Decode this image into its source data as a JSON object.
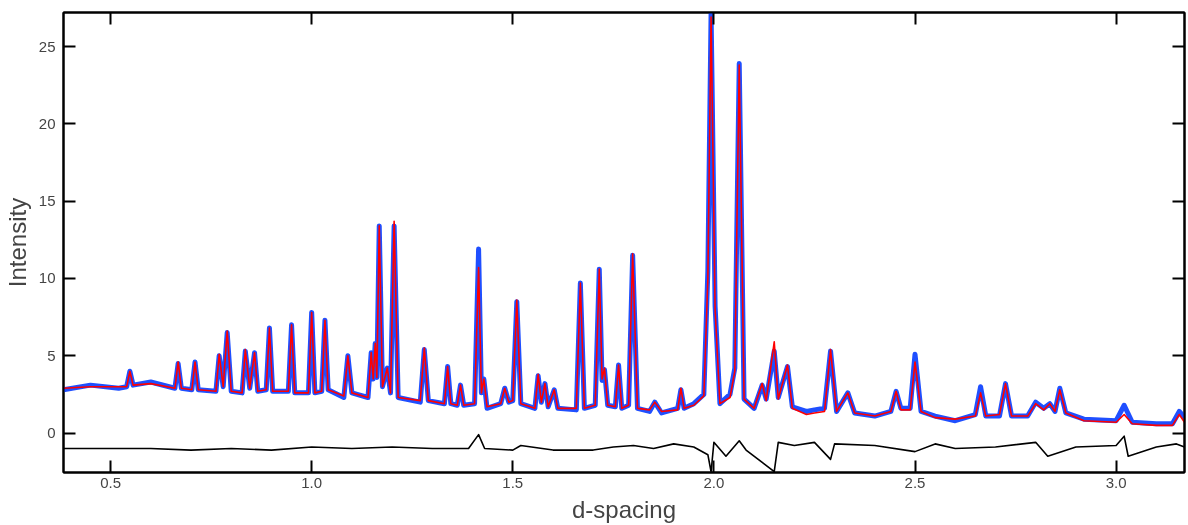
{
  "chart_data": {
    "type": "line",
    "xlabel": "d-spacing",
    "ylabel": "Intensity",
    "xlim": [
      0.383,
      3.17
    ],
    "ylim": [
      -2.55,
      27.2
    ],
    "xticks": [
      0.5,
      {
        "value": 1.0,
        "label": "1.0"
      },
      1.5,
      {
        "value": 2.0,
        "label": "2.0"
      },
      2.5,
      {
        "value": 3.0,
        "label": "3.0"
      }
    ],
    "yticks": [
      0,
      5,
      10,
      15,
      20,
      25
    ],
    "grid": false,
    "marker": "none",
    "line_style": "solid",
    "x": [
      0.383,
      0.45,
      0.52,
      0.54,
      0.548,
      0.556,
      0.6,
      0.66,
      0.668,
      0.676,
      0.702,
      0.71,
      0.718,
      0.762,
      0.77,
      0.78,
      0.79,
      0.8,
      0.827,
      0.835,
      0.846,
      0.858,
      0.866,
      0.887,
      0.895,
      0.903,
      0.942,
      0.95,
      0.958,
      0.992,
      1.0,
      1.008,
      1.025,
      1.033,
      1.041,
      1.08,
      1.09,
      1.1,
      1.14,
      1.148,
      1.153,
      1.158,
      1.162,
      1.168,
      1.176,
      1.188,
      1.196,
      1.205,
      1.215,
      1.27,
      1.28,
      1.29,
      1.33,
      1.338,
      1.346,
      1.362,
      1.37,
      1.378,
      1.405,
      1.415,
      1.422,
      1.428,
      1.436,
      1.47,
      1.48,
      1.49,
      1.5,
      1.51,
      1.52,
      1.555,
      1.563,
      1.571,
      1.58,
      1.588,
      1.603,
      1.612,
      1.658,
      1.668,
      1.678,
      1.705,
      1.715,
      1.722,
      1.728,
      1.736,
      1.755,
      1.763,
      1.771,
      1.788,
      1.798,
      1.81,
      1.84,
      1.853,
      1.87,
      1.91,
      1.918,
      1.926,
      1.95,
      1.975,
      1.985,
      1.993,
      2.003,
      2.015,
      2.04,
      2.052,
      2.063,
      2.075,
      2.1,
      2.12,
      2.13,
      2.15,
      2.16,
      2.183,
      2.195,
      2.23,
      2.25,
      2.275,
      2.29,
      2.305,
      2.333,
      2.35,
      2.4,
      2.44,
      2.453,
      2.465,
      2.488,
      2.5,
      2.515,
      2.55,
      2.6,
      2.65,
      2.663,
      2.676,
      2.71,
      2.725,
      2.74,
      2.78,
      2.8,
      2.82,
      2.835,
      2.848,
      2.86,
      2.875,
      2.92,
      3.0,
      3.02,
      3.04,
      3.1,
      3.14,
      3.157,
      3.17
    ],
    "series": [
      {
        "color": "#1f4fff",
        "values": [
          2.8,
          3.1,
          2.9,
          3.0,
          4.0,
          3.1,
          3.3,
          2.9,
          4.5,
          2.9,
          2.8,
          4.6,
          2.8,
          2.7,
          5.0,
          3.0,
          6.5,
          2.7,
          2.6,
          5.3,
          2.9,
          5.2,
          2.7,
          2.8,
          6.8,
          2.7,
          2.7,
          7.0,
          2.6,
          2.6,
          7.8,
          2.6,
          2.7,
          7.3,
          2.8,
          2.3,
          5.0,
          2.6,
          2.3,
          5.2,
          3.5,
          5.8,
          3.6,
          13.4,
          3.0,
          4.2,
          2.6,
          13.4,
          2.3,
          2.0,
          5.4,
          2.1,
          1.9,
          4.3,
          1.9,
          1.8,
          3.1,
          1.8,
          1.9,
          11.9,
          2.6,
          3.5,
          1.6,
          1.9,
          2.9,
          2.0,
          2.1,
          8.5,
          1.9,
          1.6,
          3.7,
          2.0,
          3.2,
          1.7,
          2.8,
          1.6,
          1.5,
          9.7,
          1.6,
          1.8,
          10.6,
          3.4,
          4.1,
          1.8,
          1.7,
          4.4,
          1.6,
          1.8,
          11.5,
          1.6,
          1.4,
          2.0,
          1.3,
          1.6,
          2.8,
          1.6,
          1.9,
          2.5,
          10.5,
          27.2,
          8.2,
          1.9,
          2.5,
          4.2,
          23.9,
          2.2,
          1.6,
          3.1,
          2.2,
          5.3,
          2.3,
          4.3,
          1.7,
          1.4,
          1.5,
          1.6,
          5.3,
          1.4,
          2.6,
          1.3,
          1.1,
          1.4,
          2.7,
          1.6,
          1.6,
          5.1,
          1.4,
          1.1,
          0.8,
          1.2,
          3.0,
          1.1,
          1.1,
          3.2,
          1.1,
          1.1,
          2.0,
          1.6,
          1.9,
          1.4,
          2.9,
          1.3,
          0.9,
          0.8,
          1.8,
          0.7,
          0.6,
          0.6,
          1.4,
          1.0
        ]
      },
      {
        "color": "#ff0000",
        "values": [
          2.9,
          3.0,
          3.0,
          3.0,
          4.0,
          3.1,
          3.2,
          2.9,
          4.6,
          2.9,
          2.8,
          4.6,
          2.8,
          2.7,
          5.1,
          3.0,
          6.6,
          2.7,
          2.6,
          5.4,
          2.9,
          5.2,
          2.7,
          2.8,
          6.8,
          2.7,
          2.7,
          7.0,
          2.6,
          2.6,
          7.8,
          2.6,
          2.7,
          7.3,
          2.8,
          2.4,
          5.0,
          2.6,
          2.3,
          5.2,
          3.5,
          5.8,
          3.6,
          13.4,
          3.0,
          4.2,
          2.6,
          13.7,
          2.3,
          2.1,
          5.5,
          2.1,
          1.9,
          4.3,
          1.9,
          1.8,
          3.1,
          1.8,
          1.9,
          10.7,
          2.6,
          3.5,
          1.7,
          1.9,
          2.9,
          2.0,
          2.1,
          8.6,
          1.9,
          1.6,
          3.8,
          2.0,
          3.2,
          1.7,
          2.8,
          1.6,
          1.6,
          9.7,
          1.6,
          1.8,
          10.6,
          3.5,
          4.2,
          1.8,
          1.7,
          4.4,
          1.6,
          1.8,
          11.6,
          1.6,
          1.5,
          2.0,
          1.4,
          1.5,
          2.9,
          1.6,
          1.8,
          2.4,
          10.0,
          26.9,
          8.0,
          1.9,
          2.3,
          4.0,
          23.8,
          2.2,
          1.6,
          3.2,
          2.1,
          5.9,
          2.2,
          4.4,
          1.6,
          1.2,
          1.3,
          1.4,
          5.4,
          1.4,
          2.6,
          1.3,
          1.1,
          1.4,
          2.7,
          1.5,
          1.5,
          4.6,
          1.4,
          1.0,
          0.9,
          1.1,
          2.6,
          1.1,
          1.2,
          3.2,
          1.1,
          1.1,
          1.9,
          1.5,
          1.9,
          1.4,
          2.8,
          1.3,
          0.8,
          0.7,
          1.2,
          0.6,
          0.5,
          0.5,
          1.2,
          0.7
        ]
      },
      {
        "color": "#000000",
        "x": [
          0.383,
          0.5,
          0.6,
          0.7,
          0.8,
          0.9,
          1.0,
          1.1,
          1.2,
          1.3,
          1.39,
          1.415,
          1.43,
          1.5,
          1.52,
          1.6,
          1.7,
          1.75,
          1.8,
          1.85,
          1.9,
          1.95,
          1.985,
          1.993,
          2.0,
          2.03,
          2.063,
          2.08,
          2.15,
          2.16,
          2.2,
          2.25,
          2.29,
          2.3,
          2.4,
          2.5,
          2.55,
          2.6,
          2.7,
          2.8,
          2.83,
          2.9,
          3.0,
          3.02,
          3.03,
          3.1,
          3.15,
          3.17
        ],
        "values": [
          -1.0,
          -1.0,
          -1.0,
          -1.1,
          -1.0,
          -1.1,
          -0.9,
          -1.0,
          -0.9,
          -1.0,
          -1.0,
          -0.1,
          -1.0,
          -1.1,
          -0.8,
          -1.1,
          -1.1,
          -0.9,
          -0.8,
          -1.0,
          -0.7,
          -0.9,
          -1.4,
          -2.5,
          -0.6,
          -1.5,
          -0.5,
          -1.1,
          -2.5,
          -0.6,
          -0.8,
          -0.6,
          -1.7,
          -0.7,
          -0.8,
          -1.2,
          -0.7,
          -1.0,
          -0.9,
          -0.6,
          -1.5,
          -0.9,
          -0.8,
          -0.2,
          -1.5,
          -0.9,
          -0.7,
          -0.9
        ]
      }
    ]
  }
}
